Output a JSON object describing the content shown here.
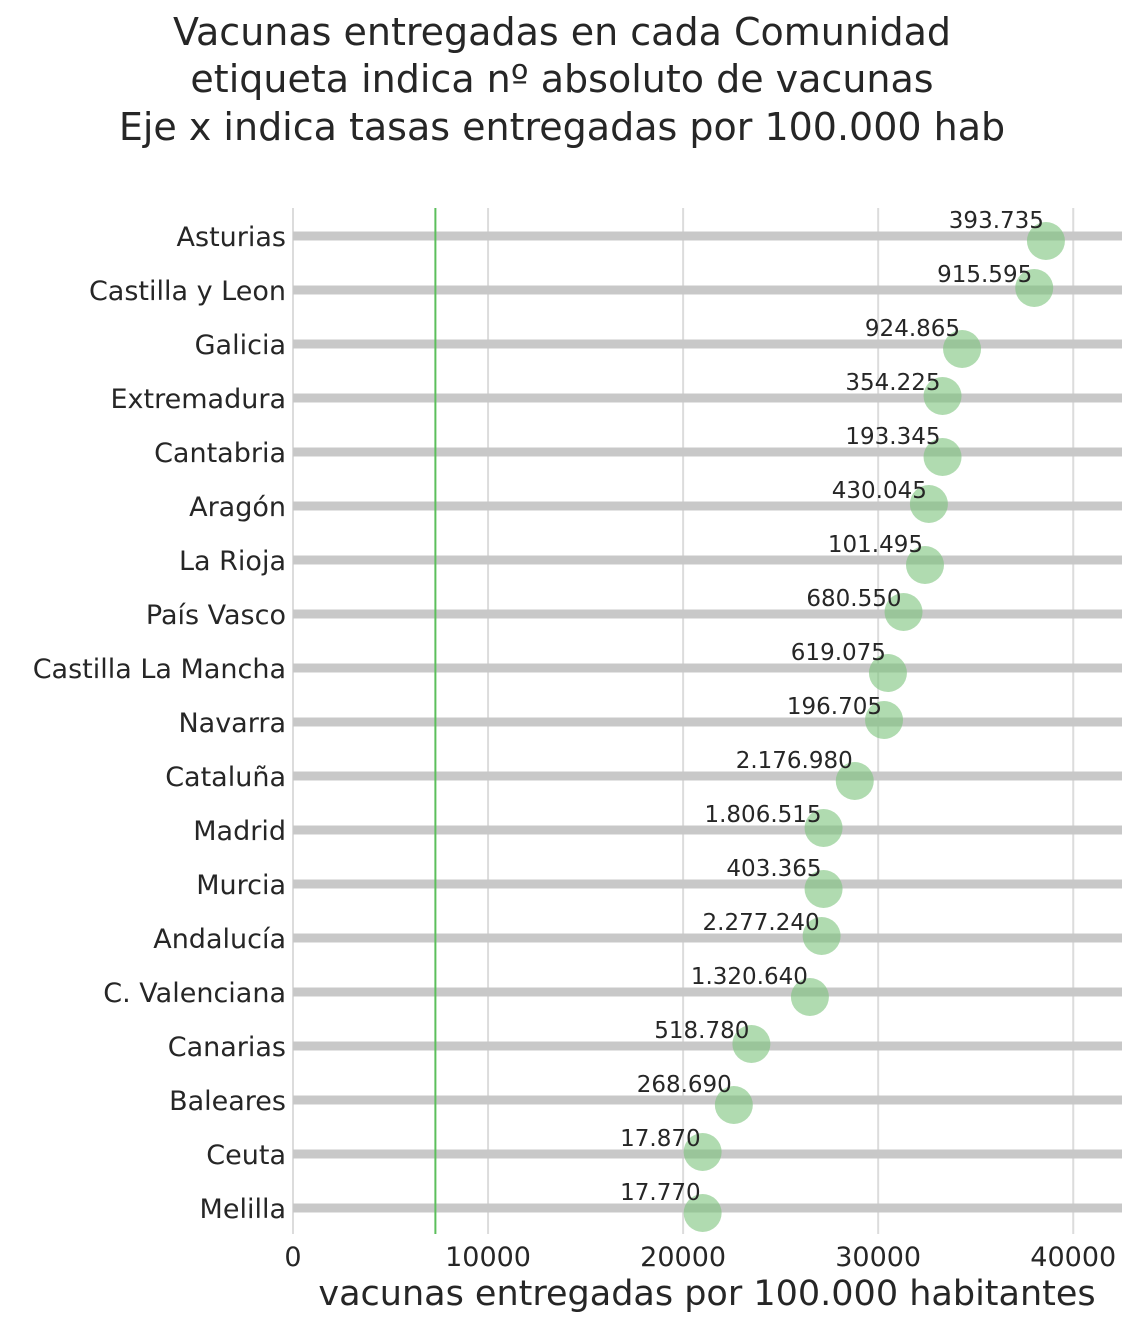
{
  "colors": {
    "bar": "#c8c8c8",
    "dot": "#7cc37c",
    "refline": "#5cbf5c",
    "grid": "#dcdcdc",
    "text": "#262626"
  },
  "chart_data": {
    "type": "scatter",
    "title_lines": [
      "Vacunas entregadas en cada Comunidad",
      "etiqueta indica nº absoluto de vacunas",
      "Eje x indica tasas entregadas por 100.000 hab"
    ],
    "xlabel": "vacunas entregadas por 100.000 habitantes",
    "ylabel": "",
    "xlim": [
      0,
      42500
    ],
    "xticks": [
      0,
      10000,
      20000,
      30000,
      40000
    ],
    "xtick_labels": [
      "0",
      "10000",
      "20000",
      "30000",
      "40000"
    ],
    "grid": "vertical",
    "reference_line_x": 7300,
    "categories": [
      "Asturias",
      "Castilla y Leon",
      "Galicia",
      "Extremadura",
      "Cantabria",
      "Aragón",
      "La Rioja",
      "País Vasco",
      "Castilla La Mancha",
      "Navarra",
      "Cataluña",
      "Madrid",
      "Murcia",
      "Andalucía",
      "C. Valenciana",
      "Canarias",
      "Baleares",
      "Ceuta",
      "Melilla"
    ],
    "values": [
      38600,
      38000,
      34300,
      33300,
      33300,
      32600,
      32400,
      31300,
      30500,
      30300,
      28800,
      27200,
      27200,
      27100,
      26500,
      23500,
      22600,
      21000,
      21000
    ],
    "labels": [
      "393.735",
      "915.595",
      "924.865",
      "354.225",
      "193.345",
      "430.045",
      "101.495",
      "680.550",
      "619.075",
      "196.705",
      "2.176.980",
      "1.806.515",
      "403.365",
      "2.277.240",
      "1.320.640",
      "518.780",
      "268.690",
      "17.870",
      "17.770"
    ]
  }
}
